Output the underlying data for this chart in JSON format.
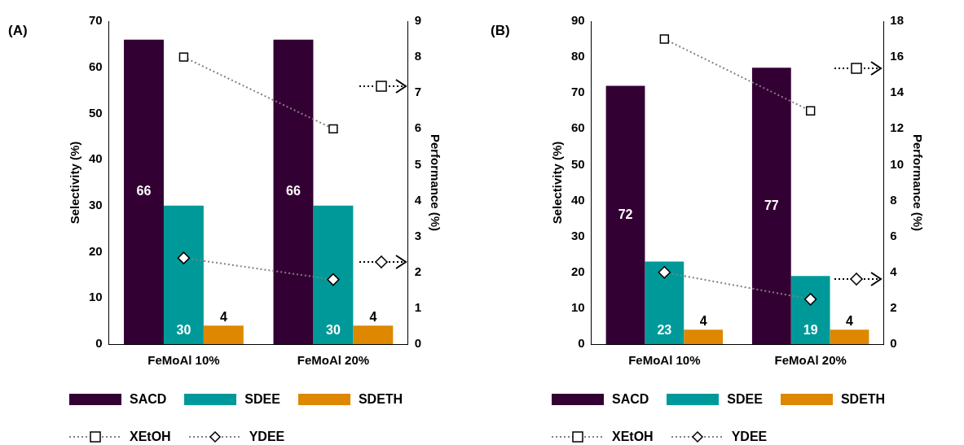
{
  "chart_data": [
    {
      "type": "bar",
      "title": "(A)",
      "categories": [
        "FeMoAl 10%",
        "FeMoAl 20%"
      ],
      "ylabel": "Selectivity (%)",
      "y2label": "Performance (%)",
      "ylim": [
        0,
        70
      ],
      "yticks": [
        0,
        10,
        20,
        30,
        40,
        50,
        60,
        70
      ],
      "y2lim": [
        0,
        9
      ],
      "y2ticks": [
        0,
        1,
        2,
        3,
        4,
        5,
        6,
        7,
        8,
        9
      ],
      "grid": false,
      "legend": "bottom",
      "series": [
        {
          "name": "SACD",
          "color": "#330033",
          "values": [
            66,
            66
          ],
          "value_labels": [
            "66",
            "66"
          ]
        },
        {
          "name": "SDEE",
          "color": "#009999",
          "values": [
            30,
            30
          ],
          "value_labels": [
            "30",
            "30"
          ]
        },
        {
          "name": "SDETH",
          "color": "#dd8800",
          "values": [
            4,
            4
          ],
          "value_labels": [
            "4",
            "4"
          ]
        },
        {
          "name": "XEtOH",
          "type": "line",
          "axis": "y2",
          "color": "#808080",
          "marker": "square",
          "line_style": "dotted",
          "values": [
            8,
            6
          ]
        },
        {
          "name": "YDEE",
          "type": "line",
          "axis": "y2",
          "color": "#808080",
          "marker": "diamond",
          "line_style": "dotted",
          "values": [
            2.4,
            1.8
          ]
        }
      ]
    },
    {
      "type": "bar",
      "title": "(B)",
      "categories": [
        "FeMoAl 10%",
        "FeMoAl 20%"
      ],
      "ylabel": "Selectivity (%)",
      "y2label": "Performance (%)",
      "ylim": [
        0,
        90
      ],
      "yticks": [
        0,
        10,
        20,
        30,
        40,
        50,
        60,
        70,
        80,
        90
      ],
      "y2lim": [
        0,
        18
      ],
      "y2ticks": [
        0,
        2,
        4,
        6,
        8,
        10,
        12,
        14,
        16,
        18
      ],
      "grid": false,
      "legend": "bottom",
      "series": [
        {
          "name": "SACD",
          "color": "#330033",
          "values": [
            72,
            77
          ],
          "value_labels": [
            "72",
            "77"
          ]
        },
        {
          "name": "SDEE",
          "color": "#009999",
          "values": [
            23,
            19
          ],
          "value_labels": [
            "23",
            "19"
          ]
        },
        {
          "name": "SDETH",
          "color": "#dd8800",
          "values": [
            4,
            4
          ],
          "value_labels": [
            "4",
            "4"
          ]
        },
        {
          "name": "XEtOH",
          "type": "line",
          "axis": "y2",
          "color": "#808080",
          "marker": "square",
          "line_style": "dotted",
          "values": [
            17,
            13
          ]
        },
        {
          "name": "YDEE",
          "type": "line",
          "axis": "y2",
          "color": "#808080",
          "marker": "diamond",
          "line_style": "dotted",
          "values": [
            4,
            2.5
          ]
        }
      ]
    }
  ]
}
